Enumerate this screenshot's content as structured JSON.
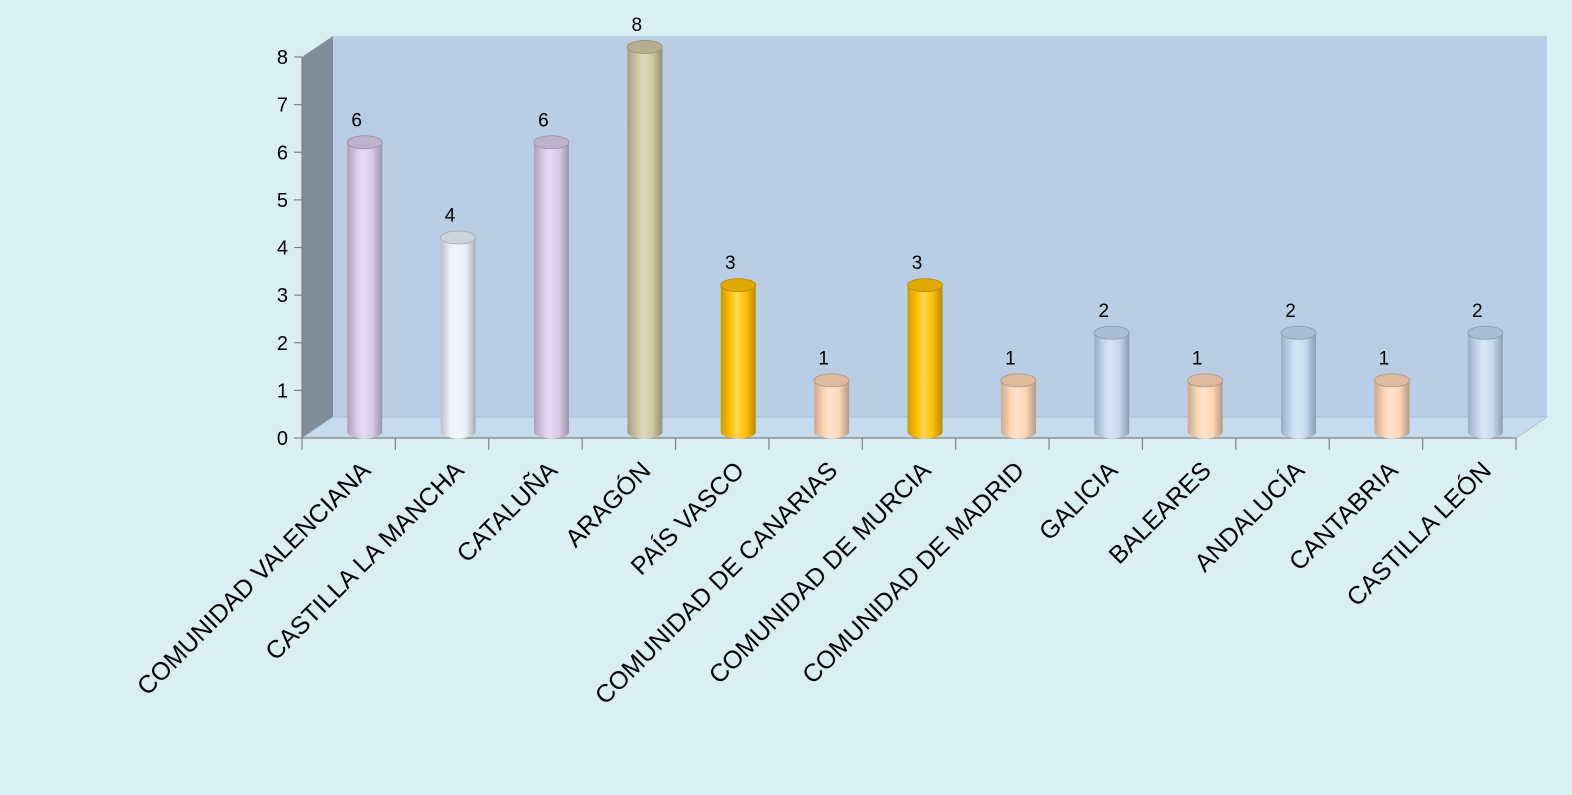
{
  "chart_data": {
    "type": "bar",
    "title": "",
    "xlabel": "",
    "ylabel": "",
    "ylim": [
      0,
      8
    ],
    "yticks": [
      0,
      1,
      2,
      3,
      4,
      5,
      6,
      7,
      8
    ],
    "grid": false,
    "legend": "none",
    "style": "3d-cylinder",
    "categories": [
      "COMUNIDAD VALENCIANA",
      "CASTILLA LA MANCHA",
      "CATALUÑA",
      "ARAGÓN",
      "PAÍS VASCO",
      "COMUNIDAD DE CANARIAS",
      "COMUNIDAD DE MURCIA",
      "COMUNIDAD DE MADRID",
      "GALICIA",
      "BALEARES",
      "ANDALUCÍA",
      "CANTABRIA",
      "CASTILLA LEÓN"
    ],
    "values": [
      6,
      4,
      6,
      8,
      3,
      1,
      3,
      1,
      2,
      1,
      2,
      1,
      2
    ],
    "data_labels": [
      "6",
      "4",
      "6",
      "8",
      "3",
      "1",
      "3",
      "1",
      "2",
      "1",
      "2",
      "1",
      "2"
    ],
    "bar_colors": [
      "#d9c9e6",
      "#e9f0fa",
      "#d9c9e6",
      "#cfc6a2",
      "#ffc000",
      "#fcd5b5",
      "#ffc000",
      "#fcd5b5",
      "#c4d7f0",
      "#fcd5b5",
      "#c4d7f0",
      "#fcd5b5",
      "#c4d7f0"
    ],
    "colors": {
      "page_background": "#daeef3",
      "back_wall": "#b9cde5",
      "side_wall": "#7f8c99",
      "floor": "#c7dbef"
    }
  }
}
